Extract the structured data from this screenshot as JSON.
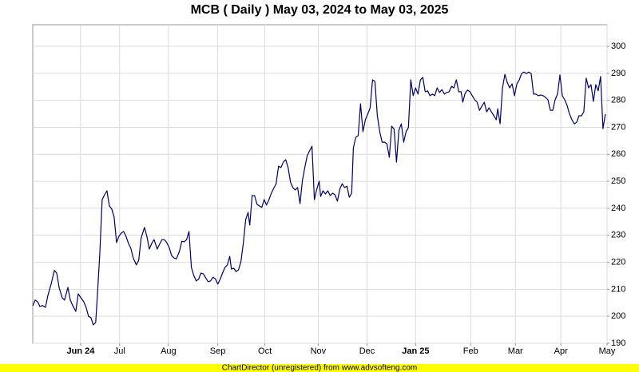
{
  "chart_data": {
    "type": "line",
    "title": "MCB ( Daily ) May 03, 2024 to May 03, 2025",
    "x": [
      0,
      1,
      2,
      3,
      4,
      5.3,
      6.3,
      7.7,
      9,
      10,
      11,
      12.3,
      13.3,
      14.7,
      15.7,
      16.7,
      18,
      19,
      20,
      21.3,
      22.3,
      23.3,
      24.3,
      25.3,
      26.3,
      27,
      28,
      29,
      30,
      31,
      32,
      33,
      34,
      35,
      36,
      37,
      38,
      39,
      40,
      41,
      42,
      43.3,
      44.3,
      45.3,
      46.7,
      47.7,
      48.7,
      49.7,
      50.7,
      52,
      53,
      54,
      55,
      56,
      57,
      58,
      59,
      60,
      61.3,
      62.3,
      63.3,
      64.3,
      65.3,
      66.3,
      67.3,
      68.3,
      69.3,
      70.3,
      71.3,
      72.3,
      73.3,
      74.3,
      75.3,
      76.3,
      77.3,
      78.3,
      79.3,
      80.3,
      81.3,
      82.3,
      83,
      84,
      85,
      86,
      87,
      88,
      89,
      90,
      90.7,
      91.7,
      92.7,
      93.7,
      94.7,
      95.7,
      96.7,
      97.7,
      98.7,
      99.7,
      100.7,
      101.7,
      102.7,
      103.7,
      104.7,
      105.7,
      106.7,
      107.7,
      108.7,
      109.7,
      110.7,
      111.7,
      112.7,
      113.7,
      114.7,
      115.7,
      116.7,
      117.7,
      118.7,
      119.7,
      120.3,
      121.3,
      122.3,
      123.3,
      124.3,
      125.3,
      126.3,
      127.3,
      128.3,
      129.3,
      130.3,
      131.3,
      132.3,
      133.3,
      134,
      135,
      136,
      137,
      138,
      139,
      140,
      141,
      142,
      143,
      144,
      145,
      146,
      147,
      148,
      149,
      150,
      151,
      152,
      153,
      154,
      155,
      156,
      157,
      158,
      159,
      160,
      161,
      162,
      163,
      164,
      165,
      166,
      167,
      168,
      169,
      170,
      171,
      172,
      173,
      174,
      175,
      176,
      177,
      178,
      179,
      179.7,
      180.7,
      181.7,
      182.7,
      183.7,
      184.7,
      185.7,
      186.7,
      187.7,
      188.7,
      189.7,
      190.7,
      191.7,
      192.7,
      193.7,
      194.3,
      195.3,
      196.3,
      197.3,
      198.3,
      199.3,
      200.3,
      201.3,
      202.3,
      203.3,
      204.3,
      205.3,
      206.3,
      207.3,
      208.3,
      209.3,
      210.3,
      211.3,
      212.3,
      213.3,
      214.3,
      215.3,
      216.3,
      217.3,
      218.3,
      219.3,
      220.3,
      221.3,
      222.3,
      223.3,
      224.3,
      225.3,
      226.3,
      227.3,
      228.3,
      229.3,
      230.3,
      231.3,
      232.3,
      233.3,
      234.3,
      235.3,
      236.3,
      237.3,
      238.3,
      239.3
    ],
    "series": [
      {
        "name": "MCB",
        "color": "#000066",
        "values": [
          203.9,
          206,
          205.4,
          203.6,
          204,
          203.3,
          207.7,
          212,
          217,
          216,
          210.7,
          206.9,
          206,
          210.7,
          206,
          204,
          201.8,
          208.3,
          207,
          205.4,
          203.3,
          200,
          199.5,
          196.8,
          197.7,
          207.7,
          223,
          243.2,
          245,
          246.5,
          240.9,
          239.7,
          236.7,
          227.3,
          229.6,
          230.8,
          231.4,
          229.6,
          227,
          225.2,
          221.6,
          219,
          220.8,
          229,
          232.9,
          229.6,
          224.9,
          227,
          228.4,
          224.9,
          226.7,
          228.4,
          228.4,
          227.3,
          225.5,
          222.5,
          221.6,
          221.3,
          224,
          227.8,
          227.6,
          228.4,
          231.4,
          218.1,
          215.1,
          213.1,
          213.7,
          216,
          215.7,
          214.2,
          212.8,
          213.1,
          214.5,
          213.9,
          211.9,
          213.7,
          216,
          218.1,
          219,
          222.2,
          217.5,
          217.8,
          216.6,
          217.2,
          220.2,
          227,
          235.8,
          238.5,
          233.8,
          244.7,
          244.7,
          241.5,
          240.9,
          240.3,
          243.2,
          241.2,
          243.2,
          245.6,
          247.4,
          249.1,
          255.6,
          255.1,
          257.1,
          258,
          255.1,
          249.7,
          247.7,
          246.8,
          247.7,
          241.7,
          250.3,
          255.1,
          259.5,
          261.3,
          263,
          243.2,
          247.1,
          250,
          244.4,
          246.5,
          245.3,
          246.5,
          244.7,
          245.6,
          245,
          242.6,
          247.1,
          249.1,
          247.7,
          248.2,
          244.1,
          245.6,
          262.4,
          266.3,
          266.9,
          278.7,
          268.4,
          272.8,
          274.9,
          277.2,
          287.6,
          287,
          274.3,
          268.4,
          264.5,
          264.5,
          263.9,
          258.9,
          270.4,
          269.3,
          257.1,
          268.9,
          271.3,
          264.5,
          268.4,
          269.9,
          287.6,
          281.7,
          284.6,
          282.3,
          287.6,
          288.5,
          283.2,
          283.5,
          281.7,
          282.3,
          281.7,
          284.6,
          282.9,
          284,
          282.3,
          282.9,
          283.2,
          285.2,
          284.6,
          287.6,
          283.2,
          283.2,
          279.3,
          282.6,
          283.8,
          283.2,
          281.7,
          280.2,
          279.3,
          276.3,
          277.8,
          279.3,
          275.7,
          277.2,
          275.7,
          274.3,
          272.8,
          276.9,
          271.3,
          284.6,
          289.6,
          286.6,
          284.6,
          286.1,
          281.7,
          286.1,
          287.6,
          289.9,
          290.5,
          289.9,
          290.5,
          289.9,
          282.3,
          282.3,
          281.7,
          282,
          281.7,
          281.1,
          280.2,
          276.3,
          276.3,
          280.2,
          282.3,
          289.4,
          281.7,
          280.2,
          278.1,
          274.9,
          272.8,
          271.3,
          271.9,
          274.3,
          274.3,
          275.7,
          288.2,
          284.6,
          285.8,
          279.6,
          285.8,
          283.5,
          288.8,
          269.5,
          274.9
        ]
      }
    ],
    "xlim": [
      0,
      240
    ],
    "xticks": [
      {
        "value": 20,
        "label": "Jun 24"
      },
      {
        "value": 36.3,
        "label": "Jul"
      },
      {
        "value": 56.7,
        "label": "Aug"
      },
      {
        "value": 77.3,
        "label": "Sep"
      },
      {
        "value": 97,
        "label": "Oct"
      },
      {
        "value": 119.3,
        "label": "Nov"
      },
      {
        "value": 139.7,
        "label": "Dec"
      },
      {
        "value": 160,
        "label": "Jan 25"
      },
      {
        "value": 183,
        "label": "Feb"
      },
      {
        "value": 201.7,
        "label": "Mar"
      },
      {
        "value": 220.7,
        "label": "Apr"
      },
      {
        "value": 240,
        "label": "May"
      }
    ],
    "ylim": [
      190,
      308
    ],
    "yticks": [
      190,
      200,
      210,
      220,
      230,
      240,
      250,
      260,
      270,
      280,
      290,
      300
    ],
    "grid": true
  },
  "footer": "ChartDirector (unregistered) from www.advsofteng.com"
}
